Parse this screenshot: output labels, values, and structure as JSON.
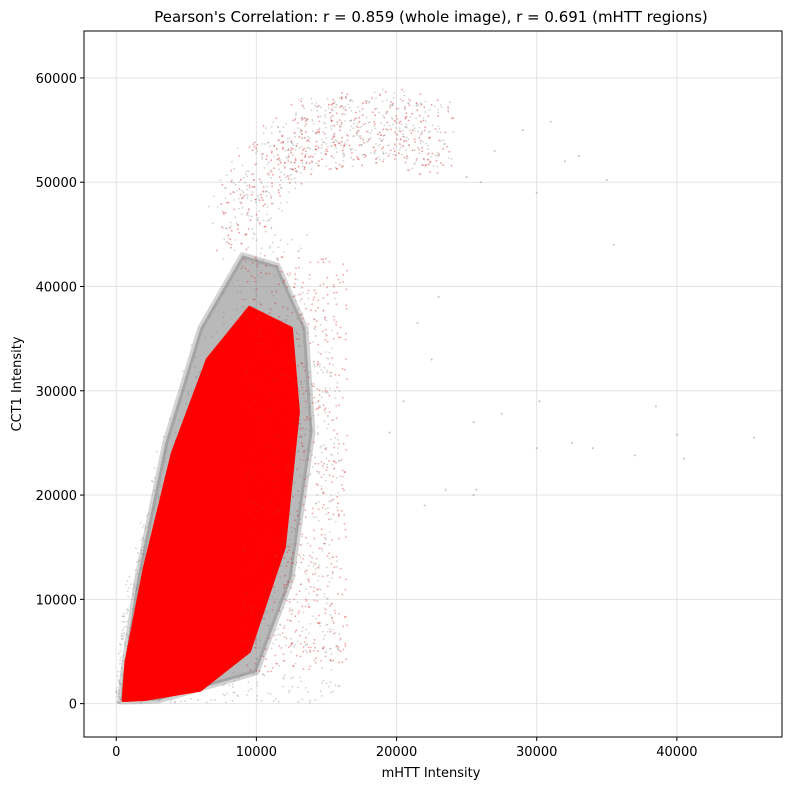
{
  "chart_data": {
    "type": "scatter",
    "title": "Pearson's Correlation: r = 0.859 (whole image), r = 0.691 (mHTT regions)",
    "xlabel": "mHTT Intensity",
    "ylabel": "CCT1 Intensity",
    "xlim": [
      -2300,
      47500
    ],
    "ylim": [
      -3200,
      64500
    ],
    "xticks": [
      0,
      10000,
      20000,
      30000,
      40000
    ],
    "yticks": [
      0,
      10000,
      20000,
      30000,
      40000,
      50000,
      60000
    ],
    "grid": true,
    "series": [
      {
        "color": "#808080",
        "alpha": 0.22,
        "description_points": [
          {
            "x": 300,
            "y": 200
          },
          {
            "x": 500,
            "y": 3000
          },
          {
            "x": 1500,
            "y": 12000
          },
          {
            "x": 3500,
            "y": 25000
          },
          {
            "x": 6000,
            "y": 36000
          },
          {
            "x": 9000,
            "y": 43000
          },
          {
            "x": 11500,
            "y": 42000
          },
          {
            "x": 13500,
            "y": 36000
          },
          {
            "x": 14000,
            "y": 26000
          },
          {
            "x": 12500,
            "y": 12000
          },
          {
            "x": 10000,
            "y": 3000
          },
          {
            "x": 3000,
            "y": 300
          }
        ]
      },
      {
        "color": "#ff0000",
        "alpha": 1.0,
        "description_points": [
          {
            "x": 500,
            "y": 300
          },
          {
            "x": 700,
            "y": 4000
          },
          {
            "x": 2000,
            "y": 13000
          },
          {
            "x": 4000,
            "y": 24000
          },
          {
            "x": 6500,
            "y": 33000
          },
          {
            "x": 9500,
            "y": 38000
          },
          {
            "x": 12500,
            "y": 36000
          },
          {
            "x": 13000,
            "y": 28000
          },
          {
            "x": 12000,
            "y": 15000
          },
          {
            "x": 9500,
            "y": 5000
          },
          {
            "x": 6000,
            "y": 1300
          },
          {
            "x": 2000,
            "y": 400
          }
        ]
      }
    ],
    "upper_arm": {
      "x": [
        8000,
        11000,
        14000,
        17000,
        20000,
        23000
      ],
      "y": [
        46000,
        52000,
        54500,
        55000,
        55500,
        54000
      ]
    },
    "outliers": [
      {
        "x": 25000,
        "y": 50500
      },
      {
        "x": 26000,
        "y": 50000
      },
      {
        "x": 30000,
        "y": 49000
      },
      {
        "x": 32000,
        "y": 52000
      },
      {
        "x": 33000,
        "y": 52500
      },
      {
        "x": 35000,
        "y": 50200
      },
      {
        "x": 27000,
        "y": 53000
      },
      {
        "x": 29000,
        "y": 55000
      },
      {
        "x": 31000,
        "y": 55800
      },
      {
        "x": 23000,
        "y": 39000
      },
      {
        "x": 25500,
        "y": 27000
      },
      {
        "x": 27500,
        "y": 27800
      },
      {
        "x": 30000,
        "y": 24500
      },
      {
        "x": 30200,
        "y": 29000
      },
      {
        "x": 32500,
        "y": 25000
      },
      {
        "x": 34000,
        "y": 24500
      },
      {
        "x": 37000,
        "y": 23800
      },
      {
        "x": 38500,
        "y": 28500
      },
      {
        "x": 40000,
        "y": 25800
      },
      {
        "x": 40500,
        "y": 23500
      },
      {
        "x": 45500,
        "y": 25500
      },
      {
        "x": 25500,
        "y": 20000
      },
      {
        "x": 25700,
        "y": 20500
      },
      {
        "x": 23500,
        "y": 20500
      },
      {
        "x": 22000,
        "y": 19000
      },
      {
        "x": 21500,
        "y": 36500
      },
      {
        "x": 22500,
        "y": 33000
      },
      {
        "x": 19500,
        "y": 26000
      },
      {
        "x": 20500,
        "y": 29000
      },
      {
        "x": 35500,
        "y": 44000
      }
    ]
  }
}
